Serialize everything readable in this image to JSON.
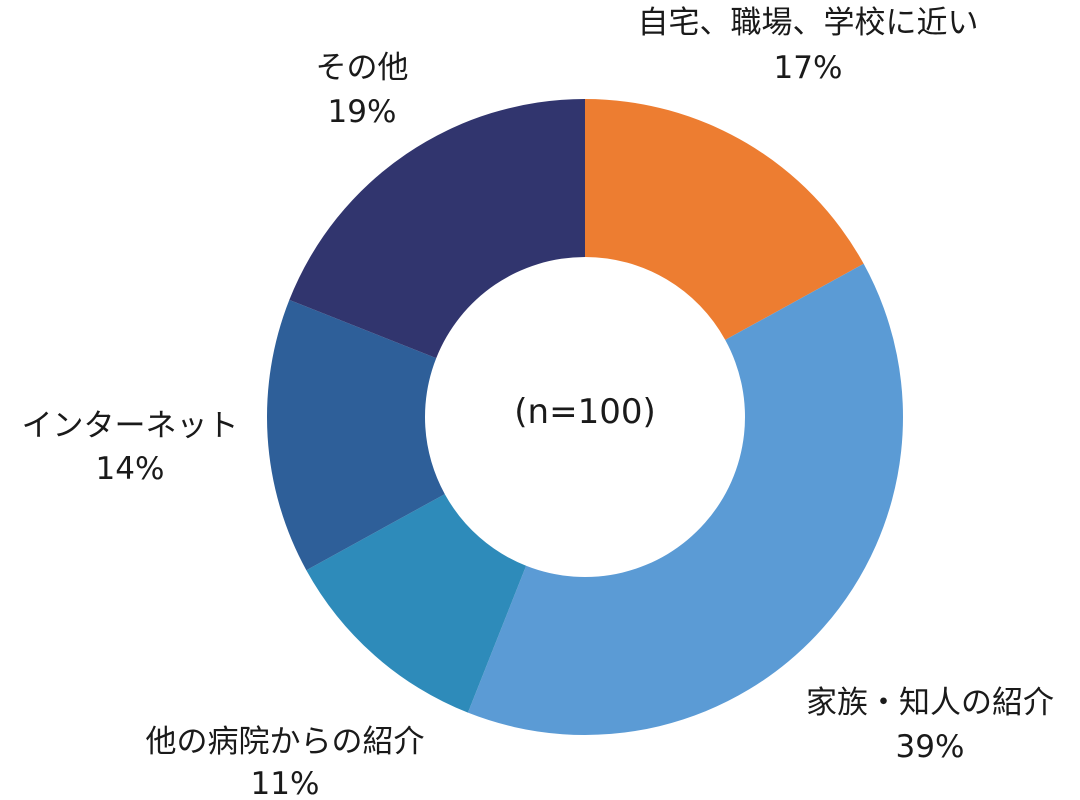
{
  "chart_data": {
    "type": "pie",
    "donut": true,
    "center_text": "(n=100)",
    "slices": [
      {
        "label": "自宅、職場、学校に近い",
        "value": 17,
        "value_label": "17%",
        "color": "#ED7D31"
      },
      {
        "label": "家族・知人の紹介",
        "value": 39,
        "value_label": "39%",
        "color": "#5B9BD5"
      },
      {
        "label": "他の病院からの紹介",
        "value": 11,
        "value_label": "11%",
        "color": "#2E8BBA"
      },
      {
        "label": "インターネット",
        "value": 14,
        "value_label": "14%",
        "color": "#2E5F99"
      },
      {
        "label": "その他",
        "value": 19,
        "value_label": "19%",
        "color": "#31356E"
      }
    ],
    "start_angle": "12 o'clock",
    "direction": "clockwise",
    "legend": "none"
  }
}
